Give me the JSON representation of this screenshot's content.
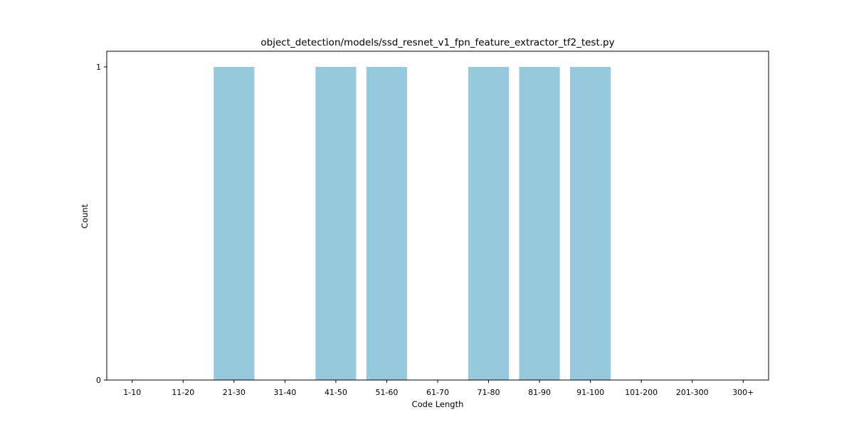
{
  "chart_data": {
    "type": "bar",
    "title": "object_detection/models/ssd_resnet_v1_fpn_feature_extractor_tf2_test.py",
    "xlabel": "Code Length",
    "ylabel": "Count",
    "categories": [
      "1-10",
      "11-20",
      "21-30",
      "31-40",
      "41-50",
      "51-60",
      "61-70",
      "71-80",
      "81-90",
      "91-100",
      "101-200",
      "201-300",
      "300+"
    ],
    "values": [
      0,
      0,
      1,
      0,
      1,
      1,
      0,
      1,
      1,
      1,
      0,
      0,
      0
    ],
    "ylim": [
      0,
      1
    ],
    "yticks": [
      0,
      1
    ],
    "bar_color": "#96c9dd",
    "grid": false,
    "legend": "none"
  }
}
